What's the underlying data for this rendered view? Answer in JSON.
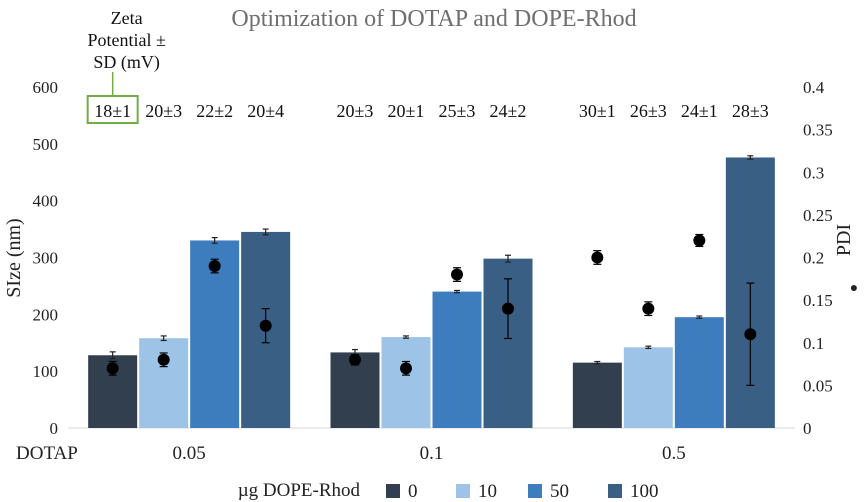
{
  "chart_data": {
    "type": "bar",
    "title": "Optimization of DOTAP and DOPE-Rhod",
    "ylabel": "SIze (nm)",
    "y2label": "PDI",
    "y2_marker": "●",
    "x_prefix_label": "DOTAP",
    "categories": [
      "0.05",
      "0.1",
      "0.5"
    ],
    "ylim": [
      0,
      600
    ],
    "yticks": [
      "0",
      "100",
      "200",
      "300",
      "400",
      "500",
      "600"
    ],
    "y2lim": [
      0,
      0.4
    ],
    "y2ticks": [
      "0",
      "0.05",
      "0.1",
      "0.15",
      "0.2",
      "0.25",
      "0.3",
      "0.35",
      "0.4"
    ],
    "legend_title": "µg DOPE-Rhod",
    "legend_position": "bottom",
    "zeta_header": [
      "Zeta",
      "Potential ±",
      "SD (mV)"
    ],
    "zeta_highlight_color": "#70ad47",
    "series": [
      {
        "name": "0",
        "color": "#323f4f",
        "values": [
          128,
          133,
          115
        ],
        "errors": [
          6,
          5,
          2
        ],
        "pdi": [
          0.07,
          0.08,
          0.2
        ],
        "pdi_err": [
          0.008,
          0.006,
          0.008
        ],
        "zeta": [
          "18±1",
          "20±3",
          "30±1"
        ]
      },
      {
        "name": "10",
        "color": "#9dc3e6",
        "values": [
          158,
          160,
          142
        ],
        "errors": [
          4,
          2,
          2
        ],
        "pdi": [
          0.08,
          0.07,
          0.14
        ],
        "pdi_err": [
          0.008,
          0.008,
          0.008
        ],
        "zeta": [
          "20±3",
          "20±1",
          "26±3"
        ]
      },
      {
        "name": "50",
        "color": "#3d7cbd",
        "values": [
          330,
          240,
          195
        ],
        "errors": [
          5,
          2,
          2
        ],
        "pdi": [
          0.19,
          0.18,
          0.22
        ],
        "pdi_err": [
          0.008,
          0.008,
          0.007
        ],
        "zeta": [
          "22±2",
          "25±3",
          "24±1"
        ]
      },
      {
        "name": "100",
        "color": "#3a5f85",
        "values": [
          345,
          298,
          476
        ],
        "errors": [
          5,
          6,
          3
        ],
        "pdi": [
          0.12,
          0.14,
          0.11
        ],
        "pdi_err": [
          0.02,
          0.035,
          0.06
        ],
        "zeta": [
          "20±4",
          "24±2",
          "28±3"
        ]
      }
    ]
  }
}
